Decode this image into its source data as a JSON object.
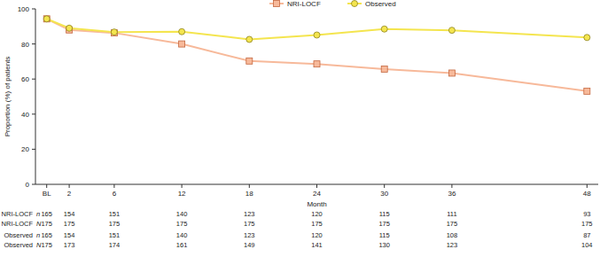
{
  "chart_data": {
    "type": "line",
    "y_label": "Proportion (%) of patients",
    "x_label": "Month",
    "x": [
      0,
      2,
      6,
      12,
      18,
      24,
      30,
      36,
      48
    ],
    "xlim": [
      -1,
      49
    ],
    "xticks": [
      {
        "value": 0,
        "label": "BL"
      },
      2,
      6,
      12,
      18,
      24,
      30,
      36,
      48
    ],
    "ylim": [
      0,
      100
    ],
    "yticks": [
      0,
      20,
      40,
      60,
      80,
      100
    ],
    "legend": "top",
    "series": [
      {
        "name": "NRI-LOCF",
        "color": "#f7b99a",
        "marker": "square",
        "values": [
          94.3,
          88.0,
          86.3,
          80.0,
          70.3,
          68.6,
          65.7,
          63.4,
          53.1
        ]
      },
      {
        "name": "Observed",
        "color": "#f4e54f",
        "marker": "circle",
        "values": [
          94.3,
          89.0,
          86.8,
          87.0,
          82.6,
          85.1,
          88.5,
          87.8,
          83.7
        ]
      }
    ]
  },
  "table": {
    "rows": [
      {
        "series": "NRI-LOCF",
        "symbol": "n",
        "values": [
          165,
          154,
          151,
          140,
          123,
          120,
          115,
          111,
          93
        ]
      },
      {
        "series": "NRI-LOCF",
        "symbol": "N",
        "values": [
          175,
          175,
          175,
          175,
          175,
          175,
          175,
          175,
          175
        ]
      },
      {
        "series": "Observed",
        "symbol": "n",
        "values": [
          165,
          154,
          151,
          140,
          123,
          120,
          115,
          108,
          87
        ]
      },
      {
        "series": "Observed",
        "symbol": "N",
        "values": [
          175,
          173,
          174,
          161,
          149,
          141,
          130,
          123,
          104
        ]
      }
    ]
  }
}
